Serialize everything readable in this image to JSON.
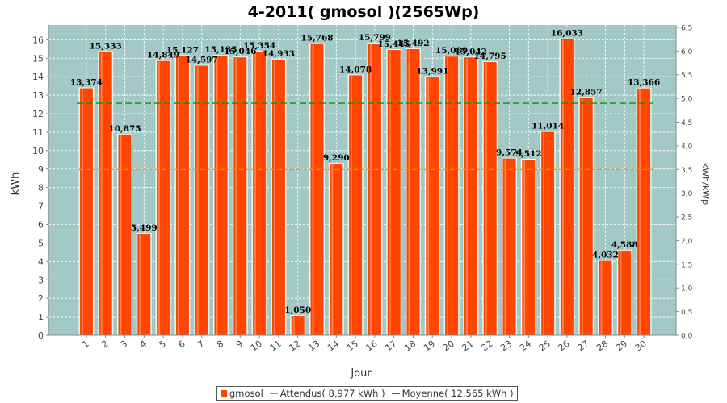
{
  "chart_data": {
    "type": "bar",
    "title": "4-2011( gmosol )(2565Wp)",
    "xlabel": "Jour",
    "ylabel": "kWh",
    "y2label": "kWh/kWp",
    "ylim": [
      0,
      16.8
    ],
    "y2lim": [
      0,
      6.55
    ],
    "yticks": [
      "0",
      "1",
      "2",
      "3",
      "4",
      "5",
      "6",
      "7",
      "8",
      "9",
      "10",
      "11",
      "12",
      "13",
      "14",
      "15",
      "16"
    ],
    "y2ticks": [
      "0,0",
      "0,5",
      "1,0",
      "1,5",
      "2,0",
      "2,5",
      "3,0",
      "3,5",
      "4,0",
      "4,5",
      "5,0",
      "5,5",
      "6,0",
      "6,5"
    ],
    "grid": true,
    "legend_position": "bottom",
    "categories": [
      "1",
      "2",
      "3",
      "4",
      "5",
      "6",
      "7",
      "8",
      "9",
      "10",
      "11",
      "12",
      "13",
      "14",
      "15",
      "16",
      "17",
      "18",
      "19",
      "20",
      "21",
      "22",
      "23",
      "24",
      "25",
      "26",
      "27",
      "28",
      "29",
      "30"
    ],
    "series": [
      {
        "name": "gmosol",
        "color": "#ff4500",
        "values": [
          13.374,
          15.333,
          10.875,
          5.499,
          14.849,
          15.127,
          14.597,
          15.135,
          15.046,
          15.354,
          14.933,
          1.05,
          15.768,
          9.29,
          14.078,
          15.799,
          15.445,
          15.492,
          13.991,
          15.089,
          15.042,
          14.795,
          9.574,
          9.512,
          11.014,
          16.033,
          12.857,
          4.032,
          4.588,
          13.366
        ],
        "labels": [
          "13,374",
          "15,333",
          "10,875",
          "5,499",
          "14,849",
          "15,127",
          "14,597",
          "15,135",
          "15,046",
          "15,354",
          "14,933",
          "1,050",
          "15,768",
          "9,290",
          "14,078",
          "15,799",
          "15,445",
          "15,492",
          "13,991",
          "15,089",
          "15,042",
          "14,795",
          "9,574",
          "9,512",
          "11,014",
          "16,033",
          "12,857",
          "4,032",
          "4,588",
          "13,366"
        ]
      }
    ],
    "expected": {
      "name": "Attendus( 8,977 kWh )",
      "color": "#ff8c00",
      "values": [
        8.977,
        8.977,
        8.977,
        8.977,
        8.977,
        8.977,
        8.977,
        8.977,
        8.977,
        8.977,
        8.977,
        8.977,
        8.977,
        8.977,
        8.977,
        8.977,
        8.977,
        8.977,
        8.977,
        8.977,
        8.977,
        8.977,
        8.977,
        8.977,
        8.977,
        8.977,
        8.977,
        8.977,
        8.977,
        8.977
      ]
    },
    "average": {
      "name": "Moyenne( 12,565 kWh )",
      "color": "#009900",
      "value": 12.565
    }
  },
  "colors": {
    "plot_background": "#a3c9c7",
    "grid": "#ffffff",
    "bar": "#ff4500"
  }
}
